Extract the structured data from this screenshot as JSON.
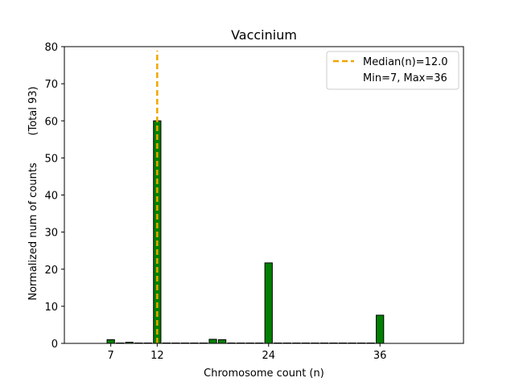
{
  "chart_data": {
    "type": "bar",
    "title": "Vaccinium",
    "xlabel": "Chromosome count (n)",
    "ylabel": "Normalized num of counts",
    "ylabel_secondary": "(Total 93)",
    "xlim": [
      2,
      45
    ],
    "ylim": [
      0,
      80
    ],
    "x_ticks": [
      7,
      12,
      24,
      36
    ],
    "y_ticks": [
      0,
      10,
      20,
      30,
      40,
      50,
      60,
      70,
      80
    ],
    "bar_width": 0.8,
    "bars": [
      {
        "x": 7,
        "value": 1.0
      },
      {
        "x": 8,
        "value": 0
      },
      {
        "x": 9,
        "value": 0.3
      },
      {
        "x": 10,
        "value": 0
      },
      {
        "x": 11,
        "value": 0
      },
      {
        "x": 12,
        "value": 60.0
      },
      {
        "x": 13,
        "value": 0
      },
      {
        "x": 14,
        "value": 0
      },
      {
        "x": 15,
        "value": 0
      },
      {
        "x": 16,
        "value": 0
      },
      {
        "x": 17,
        "value": 0
      },
      {
        "x": 18,
        "value": 1.1
      },
      {
        "x": 19,
        "value": 1.0
      },
      {
        "x": 20,
        "value": 0
      },
      {
        "x": 21,
        "value": 0
      },
      {
        "x": 22,
        "value": 0
      },
      {
        "x": 23,
        "value": 0
      },
      {
        "x": 24,
        "value": 21.7
      },
      {
        "x": 25,
        "value": 0
      },
      {
        "x": 26,
        "value": 0
      },
      {
        "x": 27,
        "value": 0
      },
      {
        "x": 28,
        "value": 0
      },
      {
        "x": 29,
        "value": 0
      },
      {
        "x": 30,
        "value": 0
      },
      {
        "x": 31,
        "value": 0
      },
      {
        "x": 32,
        "value": 0
      },
      {
        "x": 33,
        "value": 0
      },
      {
        "x": 34,
        "value": 0
      },
      {
        "x": 35,
        "value": 0
      },
      {
        "x": 36,
        "value": 7.6
      }
    ],
    "median_line": {
      "x": 12,
      "label": "Median(n)=12.0"
    },
    "legend": {
      "placement": "top-right",
      "entries": [
        {
          "label": "Median(n)=12.0",
          "kind": "dashed-line"
        },
        {
          "label": "Min=7, Max=36",
          "kind": "none"
        }
      ]
    },
    "colors": {
      "bar_fill": "#008000",
      "bar_edge": "#000000",
      "median": "#f0a500",
      "axis": "#000000"
    }
  }
}
